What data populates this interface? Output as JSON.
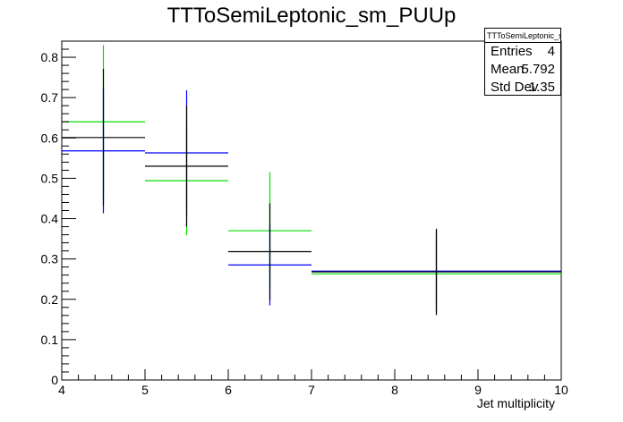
{
  "chart_data": {
    "type": "errorbar-histogram",
    "title": "TTToSemiLeptonic_sm_PUUp",
    "xlabel": "Jet multiplicity",
    "ylabel": "",
    "xlim": [
      4,
      10
    ],
    "ylim": [
      0,
      0.84
    ],
    "x_ticks": [
      4,
      5,
      6,
      7,
      8,
      9,
      10
    ],
    "y_ticks": [
      0,
      0.1,
      0.2,
      0.3,
      0.4,
      0.5,
      0.6,
      0.7,
      0.8
    ],
    "x_tick_labels": [
      "4",
      "5",
      "6",
      "7",
      "8",
      "9",
      "10"
    ],
    "y_tick_labels": [
      "0",
      "0.1",
      "0.2",
      "0.3",
      "0.4",
      "0.5",
      "0.6",
      "0.7",
      "0.8"
    ],
    "grid": false,
    "series": [
      {
        "color": "#000000",
        "points": [
          {
            "xlow": 4,
            "xhigh": 5,
            "y": 0.601,
            "err": 0.17
          },
          {
            "xlow": 5,
            "xhigh": 6,
            "y": 0.53,
            "err": 0.15
          },
          {
            "xlow": 6,
            "xhigh": 7,
            "y": 0.318,
            "err": 0.12
          },
          {
            "xlow": 7,
            "xhigh": 10,
            "y": 0.268,
            "err": 0.107
          }
        ]
      },
      {
        "color": "#0000ff",
        "points": [
          {
            "xlow": 4,
            "xhigh": 5,
            "y": 0.568,
            "err": 0.155
          },
          {
            "xlow": 5,
            "xhigh": 6,
            "y": 0.563,
            "err": 0.155
          },
          {
            "xlow": 6,
            "xhigh": 7,
            "y": 0.285,
            "err": 0.1
          },
          {
            "xlow": 7,
            "xhigh": 10,
            "y": 0.27,
            "err": 0.1
          }
        ]
      },
      {
        "color": "#00dd00",
        "points": [
          {
            "xlow": 4,
            "xhigh": 5,
            "y": 0.64,
            "err": 0.19
          },
          {
            "xlow": 5,
            "xhigh": 6,
            "y": 0.494,
            "err": 0.135
          },
          {
            "xlow": 6,
            "xhigh": 7,
            "y": 0.37,
            "err": 0.145
          },
          {
            "xlow": 7,
            "xhigh": 10,
            "y": 0.263,
            "err": 0.1
          }
        ]
      }
    ],
    "stats": {
      "title": "TTToSemiLeptonic_sm_PUUp",
      "rows": [
        {
          "label": "Entries",
          "value": "4"
        },
        {
          "label": "Mean",
          "value": "5.792"
        },
        {
          "label": "Std Dev",
          "value": "1.35"
        }
      ]
    }
  }
}
